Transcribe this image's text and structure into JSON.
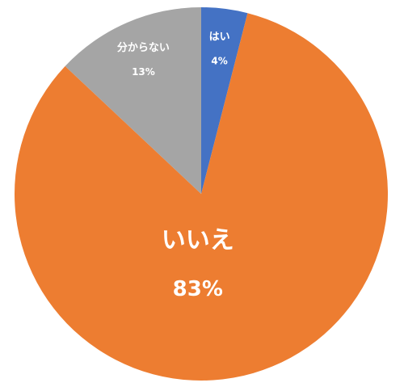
{
  "chart_data": {
    "type": "pie",
    "categories": [
      "はい",
      "いいえ",
      "分からない"
    ],
    "values": [
      4,
      83,
      13
    ],
    "value_labels": [
      "4%",
      "83%",
      "13%"
    ],
    "colors": [
      "#4472c4",
      "#ed7d31",
      "#a5a5a5"
    ]
  }
}
